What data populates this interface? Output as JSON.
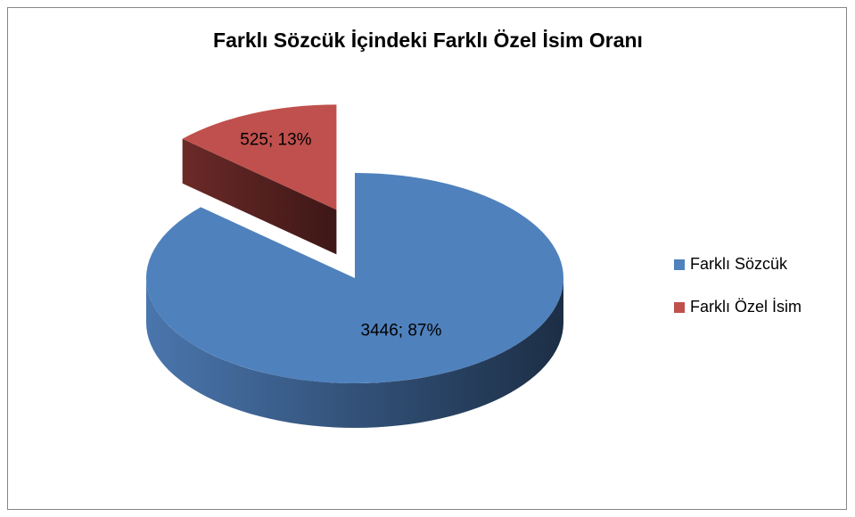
{
  "chart_data": {
    "type": "pie",
    "title": "Farklı Sözcük İçindeki Farklı Özel İsim Oranı",
    "categories": [
      "Farklı Sözcük",
      "Farklı Özel İsim"
    ],
    "values": [
      3446,
      525
    ],
    "value_labels": [
      "3446; 87%",
      "525; 13%"
    ],
    "colors": [
      "#4f81bd",
      "#c0504d"
    ],
    "legend": "right"
  }
}
